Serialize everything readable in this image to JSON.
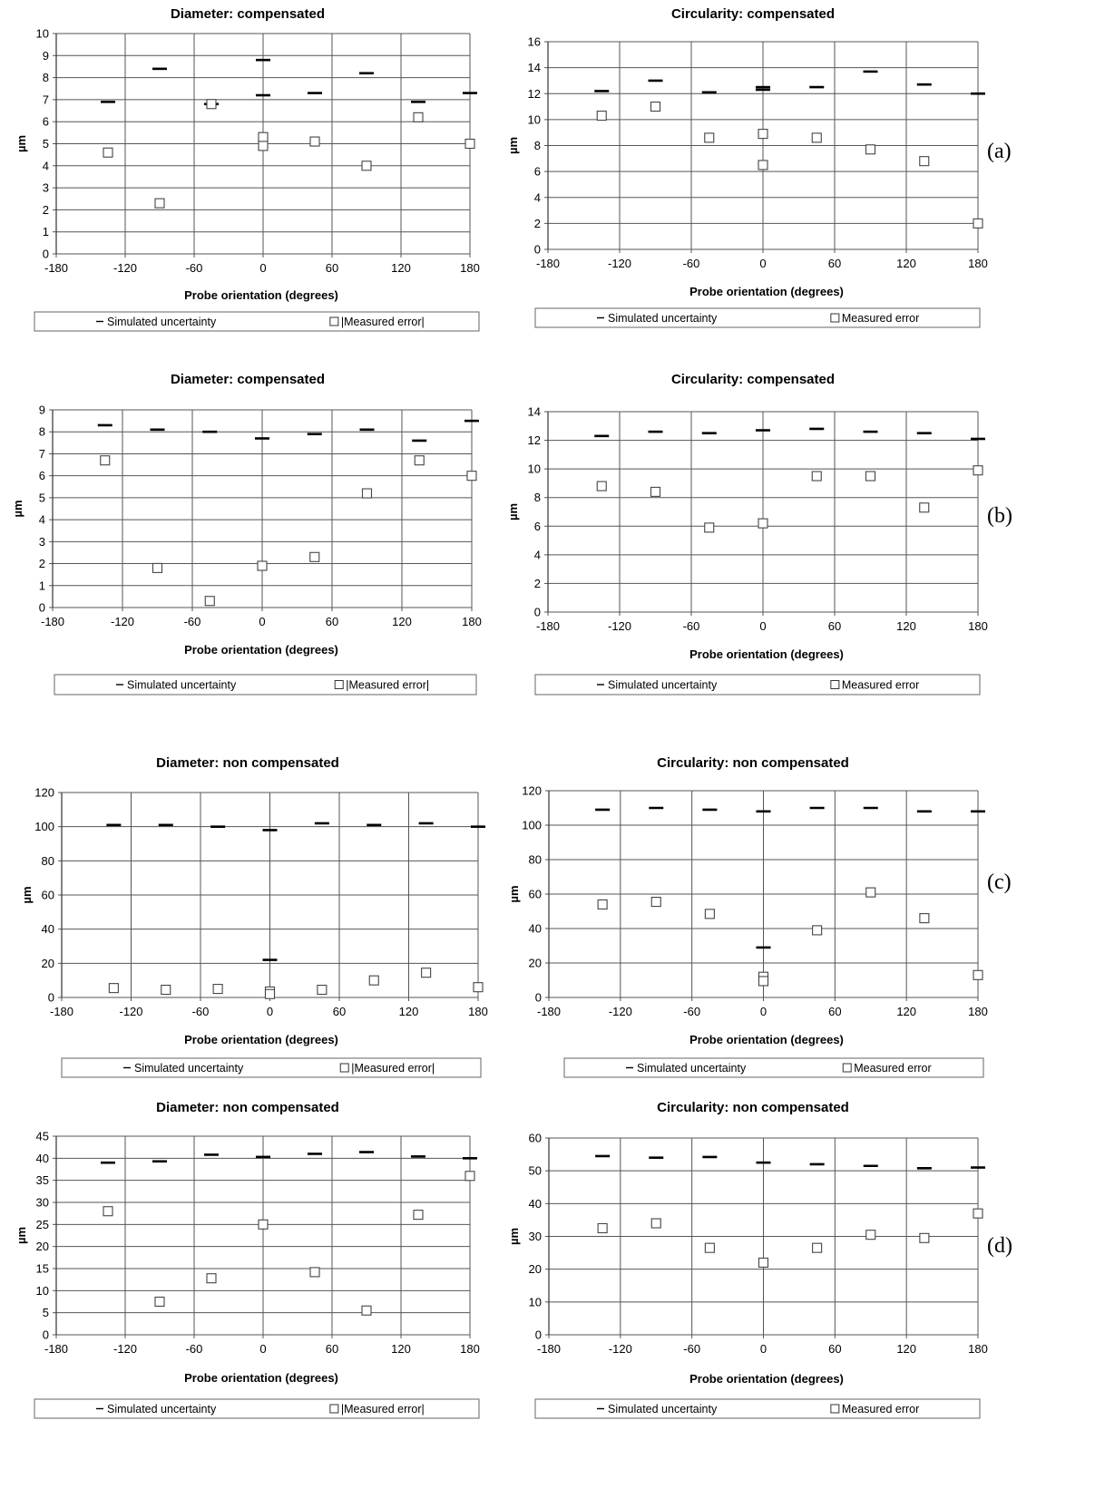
{
  "charts": [
    {
      "id": "a-left",
      "row": "a",
      "title": "Diameter: compensated",
      "xlabel": "Probe orientation (degrees)",
      "ylabel": "µm",
      "xlim": [
        -180,
        180
      ],
      "xticks": [
        -180,
        -120,
        -60,
        0,
        60,
        120,
        180
      ],
      "ylim": [
        0,
        10
      ],
      "yticks": [
        0,
        1,
        2,
        3,
        4,
        5,
        6,
        7,
        8,
        9,
        10
      ],
      "legend": [
        "Simulated uncertainty",
        "|Measured error|"
      ],
      "sim": [
        [
          -135,
          6.9
        ],
        [
          -90,
          8.4
        ],
        [
          -45,
          6.8
        ],
        [
          0,
          8.8
        ],
        [
          0,
          7.2
        ],
        [
          45,
          7.3
        ],
        [
          90,
          8.2
        ],
        [
          135,
          6.9
        ],
        [
          180,
          7.3
        ]
      ],
      "meas": [
        [
          -135,
          4.6
        ],
        [
          -90,
          2.3
        ],
        [
          -45,
          6.8
        ],
        [
          0,
          5.3
        ],
        [
          0,
          4.9
        ],
        [
          45,
          5.1
        ],
        [
          90,
          4.0
        ],
        [
          135,
          6.2
        ],
        [
          180,
          5.0
        ]
      ]
    },
    {
      "id": "a-right",
      "row": "a",
      "title": "Circularity: compensated",
      "xlabel": "Probe orientation (degrees)",
      "ylabel": "µm",
      "xlim": [
        -180,
        180
      ],
      "xticks": [
        -180,
        -120,
        -60,
        0,
        60,
        120,
        180
      ],
      "ylim": [
        0,
        16
      ],
      "yticks": [
        0,
        2,
        4,
        6,
        8,
        10,
        12,
        14,
        16
      ],
      "legend": [
        "Simulated uncertainty",
        "Measured error"
      ],
      "sim": [
        [
          -135,
          12.2
        ],
        [
          -90,
          13.0
        ],
        [
          -45,
          12.1
        ],
        [
          0,
          12.5
        ],
        [
          0,
          12.3
        ],
        [
          45,
          12.5
        ],
        [
          90,
          13.7
        ],
        [
          135,
          12.7
        ],
        [
          180,
          12.0
        ]
      ],
      "meas": [
        [
          -135,
          10.3
        ],
        [
          -90,
          11.0
        ],
        [
          -45,
          8.6
        ],
        [
          0,
          8.9
        ],
        [
          0,
          6.5
        ],
        [
          45,
          8.6
        ],
        [
          90,
          7.7
        ],
        [
          135,
          6.8
        ],
        [
          180,
          2.0
        ]
      ]
    },
    {
      "id": "b-left",
      "row": "b",
      "title": "Diameter: compensated",
      "xlabel": "Probe orientation (degrees)",
      "ylabel": "µm",
      "xlim": [
        -180,
        180
      ],
      "xticks": [
        -180,
        -120,
        -60,
        0,
        60,
        120,
        180
      ],
      "ylim": [
        0,
        9
      ],
      "yticks": [
        0,
        1,
        2,
        3,
        4,
        5,
        6,
        7,
        8,
        9
      ],
      "legend": [
        "Simulated uncertainty",
        "|Measured error|"
      ],
      "sim": [
        [
          -135,
          8.3
        ],
        [
          -90,
          8.1
        ],
        [
          -45,
          8.0
        ],
        [
          0,
          7.7
        ],
        [
          45,
          7.9
        ],
        [
          90,
          8.1
        ],
        [
          135,
          7.6
        ],
        [
          180,
          8.5
        ]
      ],
      "meas": [
        [
          -135,
          6.7
        ],
        [
          -90,
          1.8
        ],
        [
          -45,
          0.3
        ],
        [
          0,
          1.9
        ],
        [
          45,
          2.3
        ],
        [
          90,
          5.2
        ],
        [
          135,
          6.7
        ],
        [
          180,
          6.0
        ]
      ]
    },
    {
      "id": "b-right",
      "row": "b",
      "title": "Circularity: compensated",
      "xlabel": "Probe orientation (degrees)",
      "ylabel": "µm",
      "xlim": [
        -180,
        180
      ],
      "xticks": [
        -180,
        -120,
        -60,
        0,
        60,
        120,
        180
      ],
      "ylim": [
        0,
        14
      ],
      "yticks": [
        0,
        2,
        4,
        6,
        8,
        10,
        12,
        14
      ],
      "legend": [
        "Simulated uncertainty",
        "Measured error"
      ],
      "sim": [
        [
          -135,
          12.3
        ],
        [
          -90,
          12.6
        ],
        [
          -45,
          12.5
        ],
        [
          0,
          12.7
        ],
        [
          45,
          12.8
        ],
        [
          90,
          12.6
        ],
        [
          135,
          12.5
        ],
        [
          180,
          12.1
        ]
      ],
      "meas": [
        [
          -135,
          8.8
        ],
        [
          -90,
          8.4
        ],
        [
          -45,
          5.9
        ],
        [
          0,
          6.2
        ],
        [
          45,
          9.5
        ],
        [
          90,
          9.5
        ],
        [
          135,
          7.3
        ],
        [
          180,
          9.9
        ]
      ]
    },
    {
      "id": "c-left",
      "row": "c",
      "title": "Diameter: non compensated",
      "xlabel": "Probe orientation (degrees)",
      "ylabel": "µm",
      "xlim": [
        -180,
        180
      ],
      "xticks": [
        -180,
        -120,
        -60,
        0,
        60,
        120,
        180
      ],
      "ylim": [
        0,
        120
      ],
      "yticks": [
        0,
        20,
        40,
        60,
        80,
        100,
        120
      ],
      "legend": [
        "Simulated uncertainty",
        "|Measured error|"
      ],
      "sim": [
        [
          -135,
          101
        ],
        [
          -90,
          101
        ],
        [
          -45,
          100
        ],
        [
          0,
          98
        ],
        [
          0,
          22
        ],
        [
          45,
          102
        ],
        [
          90,
          101
        ],
        [
          135,
          102
        ],
        [
          180,
          100
        ]
      ],
      "meas": [
        [
          -135,
          5.5
        ],
        [
          -90,
          4.5
        ],
        [
          -45,
          5
        ],
        [
          0,
          3.5
        ],
        [
          0,
          2
        ],
        [
          45,
          4.5
        ],
        [
          90,
          10
        ],
        [
          135,
          14.5
        ],
        [
          180,
          6
        ]
      ]
    },
    {
      "id": "c-right",
      "row": "c",
      "title": "Circularity: non compensated",
      "xlabel": "Probe orientation (degrees)",
      "ylabel": "µm",
      "xlim": [
        -180,
        180
      ],
      "xticks": [
        -180,
        -120,
        -60,
        0,
        60,
        120,
        180
      ],
      "ylim": [
        0,
        120
      ],
      "yticks": [
        0,
        20,
        40,
        60,
        80,
        100,
        120
      ],
      "legend": [
        "Simulated uncertainty",
        "Measured error"
      ],
      "sim": [
        [
          -135,
          109
        ],
        [
          -90,
          110
        ],
        [
          -45,
          109
        ],
        [
          0,
          108
        ],
        [
          0,
          29
        ],
        [
          45,
          110
        ],
        [
          90,
          110
        ],
        [
          135,
          108
        ],
        [
          180,
          108
        ]
      ],
      "meas": [
        [
          -135,
          54
        ],
        [
          -90,
          55.5
        ],
        [
          -45,
          48.5
        ],
        [
          0,
          12
        ],
        [
          0,
          9.5
        ],
        [
          45,
          39
        ],
        [
          90,
          61
        ],
        [
          135,
          46
        ],
        [
          180,
          13
        ]
      ]
    },
    {
      "id": "d-left",
      "row": "d",
      "title": "Diameter: non compensated",
      "xlabel": "Probe orientation (degrees)",
      "ylabel": "µm",
      "xlim": [
        -180,
        180
      ],
      "xticks": [
        -180,
        -120,
        -60,
        0,
        60,
        120,
        180
      ],
      "ylim": [
        0,
        45
      ],
      "yticks": [
        0,
        5,
        10,
        15,
        20,
        25,
        30,
        35,
        40,
        45
      ],
      "legend": [
        "Simulated uncertainty",
        "|Measured error|"
      ],
      "sim": [
        [
          -135,
          39
        ],
        [
          -90,
          39.3
        ],
        [
          -45,
          40.8
        ],
        [
          0,
          40.3
        ],
        [
          45,
          41
        ],
        [
          90,
          41.4
        ],
        [
          135,
          40.4
        ],
        [
          180,
          40
        ]
      ],
      "meas": [
        [
          -135,
          28
        ],
        [
          -90,
          7.5
        ],
        [
          -45,
          12.8
        ],
        [
          0,
          25
        ],
        [
          45,
          14.2
        ],
        [
          90,
          5.5
        ],
        [
          135,
          27.2
        ],
        [
          180,
          36
        ]
      ]
    },
    {
      "id": "d-right",
      "row": "d",
      "title": "Circularity: non compensated",
      "xlabel": "Probe orientation (degrees)",
      "ylabel": "µm",
      "xlim": [
        -180,
        180
      ],
      "xticks": [
        -180,
        -120,
        -60,
        0,
        60,
        120,
        180
      ],
      "ylim": [
        0,
        60
      ],
      "yticks": [
        0,
        10,
        20,
        30,
        40,
        50,
        60
      ],
      "legend": [
        "Simulated uncertainty",
        "Measured error"
      ],
      "sim": [
        [
          -135,
          54.5
        ],
        [
          -90,
          54
        ],
        [
          -45,
          54.2
        ],
        [
          0,
          52.5
        ],
        [
          45,
          52
        ],
        [
          90,
          51.5
        ],
        [
          135,
          50.8
        ],
        [
          180,
          51
        ]
      ],
      "meas": [
        [
          -135,
          32.5
        ],
        [
          -90,
          34
        ],
        [
          -45,
          26.5
        ],
        [
          0,
          22
        ],
        [
          45,
          26.5
        ],
        [
          90,
          30.5
        ],
        [
          135,
          29.5
        ],
        [
          180,
          37
        ]
      ]
    }
  ],
  "row_labels": [
    {
      "row": "a",
      "text": "(a)"
    },
    {
      "row": "b",
      "text": "(b)"
    },
    {
      "row": "c",
      "text": "(c)"
    },
    {
      "row": "d",
      "text": "(d)"
    }
  ]
}
